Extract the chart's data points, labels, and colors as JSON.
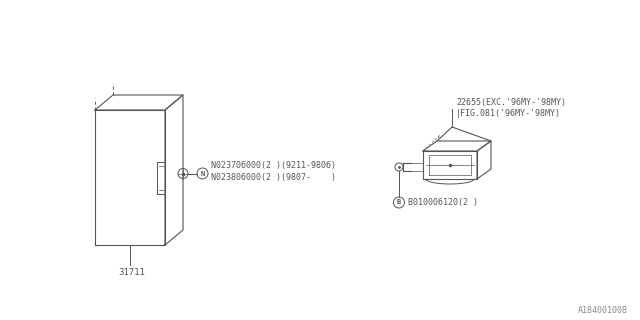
{
  "bg_color": "#ffffff",
  "line_color": "#555555",
  "text_color": "#555555",
  "fig_width": 6.4,
  "fig_height": 3.2,
  "dpi": 100,
  "watermark": "A184001008",
  "part_31711_label": "31711",
  "part_22655_line1": "22655(EXC.'96MY-'98MY)",
  "part_22655_line2": "|FIG.081('96MY-'98MY)",
  "bolt_label1": "N023706000(2 )(9211-9806)",
  "bolt_label2": "N023806000(2 )(9807-    )",
  "bolt_b_label": "B010006120(2 )"
}
